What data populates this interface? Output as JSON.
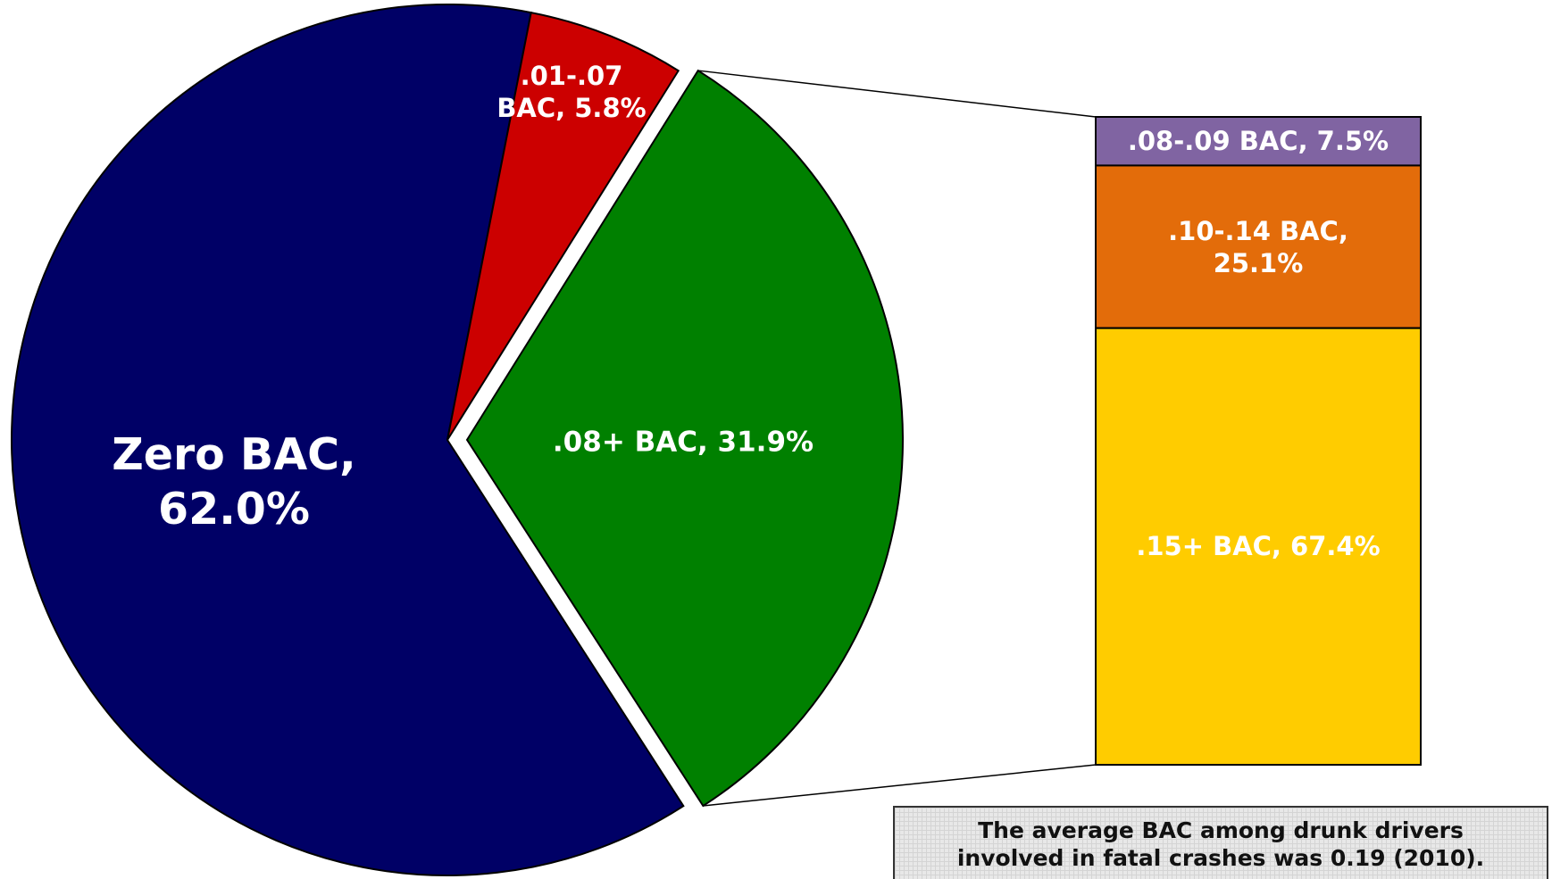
{
  "chart_data": {
    "type": "pie",
    "value_labels": [
      "Zero BAC, 62.0%",
      ".01-.07 BAC, 5.8%",
      ".08+ BAC, 31.9%"
    ],
    "values": [
      62.0,
      5.8,
      31.9
    ],
    "colors": [
      "#000066",
      "#cc0000",
      "#008000"
    ],
    "breakdown": {
      "value_labels": [
        ".08-.09 BAC, 7.5%",
        ".10-.14 BAC, 25.1%",
        ".15+ BAC, 67.4%"
      ],
      "values": [
        7.5,
        25.1,
        67.4
      ],
      "colors": [
        "#8064a2",
        "#e36c0a",
        "#ffcc00"
      ]
    },
    "annotation": "The average BAC among drunk drivers involved in fatal crashes was 0.19 (2010)."
  }
}
